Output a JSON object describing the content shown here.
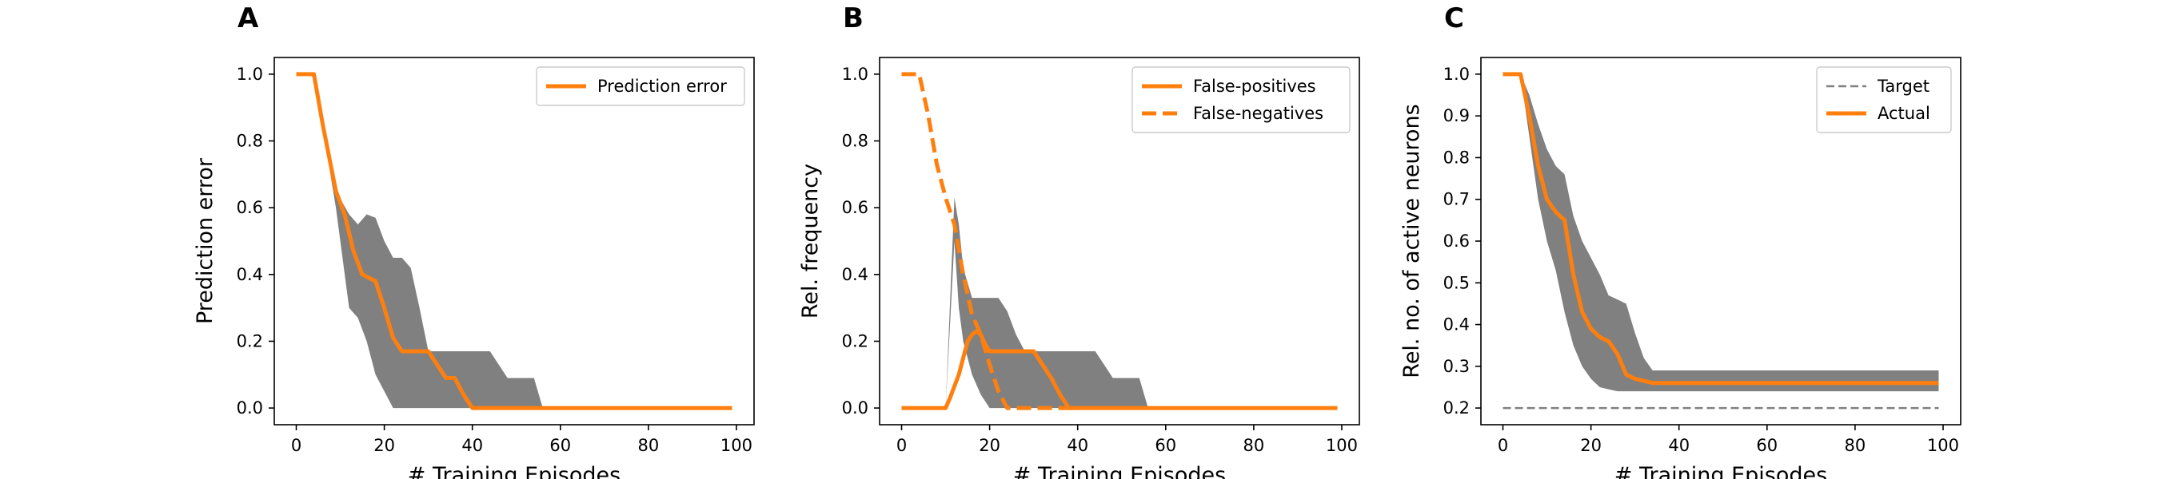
{
  "chart_data": [
    {
      "type": "line",
      "panel": "A",
      "xlabel": "# Training Episodes",
      "ylabel": "Prediction error",
      "xlim": [
        -5,
        104
      ],
      "ylim": [
        -0.05,
        1.05
      ],
      "xticks": [
        0,
        20,
        40,
        60,
        80,
        100
      ],
      "yticks": [
        0.0,
        0.2,
        0.4,
        0.6,
        0.8,
        1.0
      ],
      "ytick_decimals": 1,
      "grid": false,
      "legend_position": "top-right",
      "band": {
        "color": "#808080",
        "x": [
          0,
          4,
          9,
          12,
          14,
          16,
          18,
          20,
          22,
          24,
          26,
          28,
          30,
          32,
          34,
          36,
          38,
          40,
          44,
          48,
          52,
          54,
          56,
          99
        ],
        "lower": [
          1.0,
          1.0,
          0.6,
          0.3,
          0.27,
          0.2,
          0.1,
          0.05,
          0.0,
          0.0,
          0.0,
          0.0,
          0.0,
          0.0,
          0.0,
          0.0,
          0.0,
          0.0,
          0.0,
          0.0,
          0.0,
          0.0,
          0.0,
          0.0
        ],
        "upper": [
          1.0,
          1.0,
          0.65,
          0.58,
          0.55,
          0.58,
          0.57,
          0.5,
          0.45,
          0.45,
          0.42,
          0.3,
          0.17,
          0.17,
          0.17,
          0.17,
          0.17,
          0.17,
          0.17,
          0.09,
          0.09,
          0.09,
          0.0,
          0.0
        ]
      },
      "series": [
        {
          "name": "Prediction error",
          "color": "#ff7f0e",
          "dash": "solid",
          "x": [
            0,
            4,
            6,
            9,
            11,
            13,
            15,
            18,
            20,
            22,
            24,
            26,
            28,
            30,
            32,
            34,
            36,
            38,
            40,
            50,
            99
          ],
          "y": [
            1.0,
            1.0,
            0.85,
            0.65,
            0.58,
            0.47,
            0.4,
            0.38,
            0.3,
            0.21,
            0.17,
            0.17,
            0.17,
            0.17,
            0.13,
            0.09,
            0.09,
            0.04,
            0.0,
            0.0,
            0.0
          ]
        }
      ]
    },
    {
      "type": "line",
      "panel": "B",
      "xlabel": "# Training Episodes",
      "ylabel": "Rel. frequency",
      "xlim": [
        -5,
        104
      ],
      "ylim": [
        -0.05,
        1.05
      ],
      "xticks": [
        0,
        20,
        40,
        60,
        80,
        100
      ],
      "yticks": [
        0.0,
        0.2,
        0.4,
        0.6,
        0.8,
        1.0
      ],
      "ytick_decimals": 1,
      "grid": false,
      "legend_position": "top-right",
      "band": {
        "color": "#808080",
        "x": [
          0,
          10,
          12,
          13,
          14,
          16,
          18,
          20,
          22,
          24,
          26,
          28,
          30,
          32,
          34,
          36,
          38,
          40,
          44,
          48,
          52,
          54,
          56,
          99
        ],
        "lower": [
          0.0,
          0.0,
          0.5,
          0.3,
          0.2,
          0.1,
          0.04,
          0.0,
          0.0,
          0.0,
          0.0,
          0.0,
          0.0,
          0.0,
          0.0,
          0.0,
          0.0,
          0.0,
          0.0,
          0.0,
          0.0,
          0.0,
          0.0,
          0.0
        ],
        "upper": [
          0.0,
          0.0,
          0.63,
          0.55,
          0.42,
          0.33,
          0.33,
          0.33,
          0.33,
          0.29,
          0.22,
          0.17,
          0.17,
          0.17,
          0.17,
          0.17,
          0.17,
          0.17,
          0.17,
          0.09,
          0.09,
          0.09,
          0.0,
          0.0
        ]
      },
      "series": [
        {
          "name": "False-positives",
          "color": "#ff7f0e",
          "dash": "solid",
          "x": [
            0,
            10,
            11,
            13,
            15,
            16,
            17,
            18,
            19,
            20,
            22,
            24,
            26,
            28,
            30,
            32,
            34,
            36,
            38,
            40,
            50,
            99
          ],
          "y": [
            0.0,
            0.0,
            0.03,
            0.1,
            0.2,
            0.22,
            0.23,
            0.22,
            0.19,
            0.17,
            0.17,
            0.17,
            0.17,
            0.17,
            0.17,
            0.13,
            0.09,
            0.04,
            0.0,
            0.0,
            0.0,
            0.0
          ]
        },
        {
          "name": "False-negatives",
          "color": "#ff7f0e",
          "dash": "dashed",
          "x": [
            0,
            4,
            6,
            8,
            10,
            12,
            14,
            16,
            18,
            20,
            22,
            24,
            25,
            26,
            28,
            30,
            32,
            34,
            36,
            38,
            40
          ],
          "y": [
            1.0,
            1.0,
            0.88,
            0.73,
            0.63,
            0.55,
            0.4,
            0.28,
            0.22,
            0.13,
            0.05,
            0.0,
            0.0,
            0.0,
            0.0,
            0.0,
            0.0,
            0.0,
            0.0,
            0.0,
            0.0
          ]
        }
      ]
    },
    {
      "type": "line",
      "panel": "C",
      "xlabel": "# Training Episodes",
      "ylabel": "Rel. no. of active neurons",
      "xlim": [
        -5,
        104
      ],
      "ylim": [
        0.16,
        1.04
      ],
      "xticks": [
        0,
        20,
        40,
        60,
        80,
        100
      ],
      "yticks": [
        0.2,
        0.3,
        0.4,
        0.5,
        0.6,
        0.7,
        0.8,
        0.9,
        1.0
      ],
      "ytick_decimals": 1,
      "grid": false,
      "legend_position": "top-right",
      "band": {
        "color": "#808080",
        "x": [
          0,
          4,
          6,
          8,
          10,
          12,
          14,
          16,
          18,
          20,
          22,
          24,
          26,
          28,
          30,
          32,
          34,
          36,
          40,
          50,
          99
        ],
        "lower": [
          1.0,
          1.0,
          0.85,
          0.7,
          0.6,
          0.53,
          0.43,
          0.35,
          0.3,
          0.27,
          0.25,
          0.245,
          0.24,
          0.24,
          0.24,
          0.24,
          0.24,
          0.24,
          0.24,
          0.24,
          0.24
        ],
        "upper": [
          1.0,
          1.0,
          0.95,
          0.88,
          0.82,
          0.78,
          0.76,
          0.66,
          0.6,
          0.56,
          0.52,
          0.47,
          0.46,
          0.45,
          0.38,
          0.32,
          0.29,
          0.29,
          0.29,
          0.29,
          0.29
        ]
      },
      "series": [
        {
          "name": "Target",
          "color": "#808080",
          "dash": "dashed",
          "x": [
            0,
            99
          ],
          "y": [
            0.2,
            0.2
          ]
        },
        {
          "name": "Actual",
          "color": "#ff7f0e",
          "dash": "solid",
          "x": [
            0,
            4,
            6,
            8,
            10,
            12,
            14,
            16,
            18,
            20,
            22,
            24,
            26,
            28,
            30,
            32,
            34,
            36,
            40,
            50,
            99
          ],
          "y": [
            1.0,
            1.0,
            0.9,
            0.78,
            0.7,
            0.67,
            0.65,
            0.52,
            0.43,
            0.39,
            0.37,
            0.36,
            0.33,
            0.28,
            0.27,
            0.265,
            0.26,
            0.26,
            0.26,
            0.26,
            0.26
          ]
        }
      ]
    }
  ]
}
